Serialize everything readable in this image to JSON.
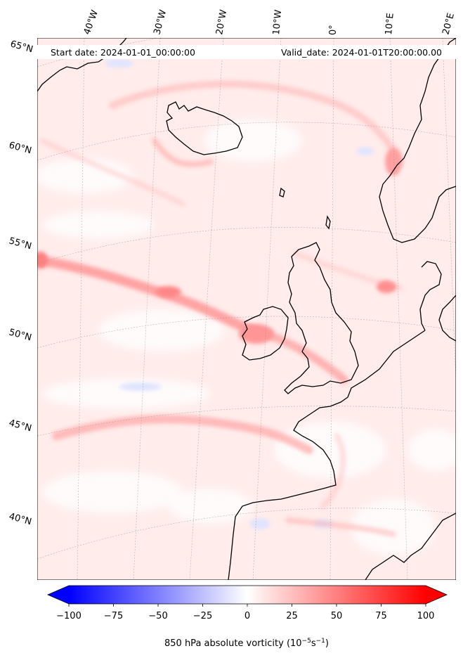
{
  "map": {
    "start_date_text": "Start date: 2024-01-01_00:00:00",
    "valid_date_text": "Valid_date: 2024-01-01T20:00:00.00",
    "lon_labels": [
      "40°W",
      "30°W",
      "20°W",
      "10°W",
      "0°",
      "10°E",
      "20°E"
    ],
    "lat_labels": [
      "65°N",
      "60°N",
      "55°N",
      "50°N",
      "45°N",
      "40°N"
    ]
  },
  "colorbar": {
    "ticks": [
      "−100",
      "−75",
      "−50",
      "−25",
      "0",
      "25",
      "50",
      "75",
      "100"
    ],
    "label_main": "850 hPa absolute vorticity (10",
    "label_exp1": "−5",
    "label_mid": "s",
    "label_exp2": "−1",
    "label_end": ")",
    "min": -100,
    "max": 100,
    "colormap": "bwr",
    "extend": "both"
  },
  "colors": {
    "land_outline": "#000000",
    "background": "#fff1f0",
    "positive": "#ff0000",
    "negative": "#0000ff"
  }
}
